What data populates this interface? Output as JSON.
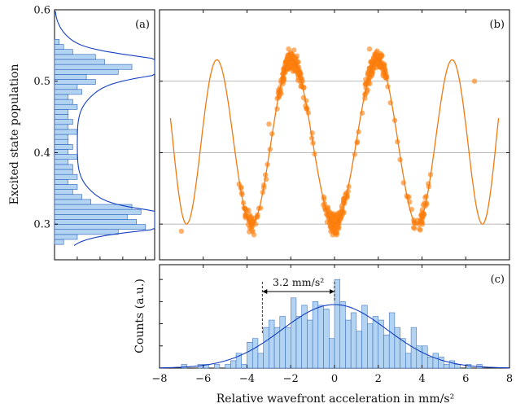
{
  "figure": {
    "ylabel_left": "Excited state population",
    "ylabel_bottom": "Counts (a.u.)",
    "xlabel": "Relative wavefront acceleration in mm/s²"
  },
  "colors": {
    "scatter": "#ff7f0e",
    "fit_orange": "#f07a10",
    "hist_fill": "#b3d3f3",
    "hist_edge": "#2a62b8",
    "fit_blue": "#1540c0",
    "grid": "#b0b0b0"
  },
  "chart_data": [
    {
      "panel": "a",
      "type": "bar",
      "orientation": "horizontal",
      "label": "(a)",
      "ylim": [
        0.25,
        0.6
      ],
      "yticks": [
        "0.3",
        "0.4",
        "0.5",
        "0.6"
      ],
      "bins_y": [
        0.275,
        0.282,
        0.289,
        0.296,
        0.303,
        0.31,
        0.317,
        0.324,
        0.331,
        0.338,
        0.345,
        0.352,
        0.359,
        0.366,
        0.373,
        0.38,
        0.387,
        0.394,
        0.401,
        0.408,
        0.415,
        0.422,
        0.429,
        0.436,
        0.443,
        0.45,
        0.457,
        0.464,
        0.471,
        0.478,
        0.485,
        0.492,
        0.499,
        0.506,
        0.513,
        0.52,
        0.527,
        0.534,
        0.541,
        0.548,
        0.555
      ],
      "counts": [
        2,
        5,
        14,
        20,
        18,
        16,
        19,
        17,
        8,
        6,
        4,
        5,
        3,
        5,
        4,
        4,
        3,
        5,
        3,
        4,
        3,
        3,
        5,
        3,
        4,
        3,
        3,
        5,
        4,
        3,
        6,
        5,
        9,
        7,
        14,
        17,
        11,
        9,
        4,
        2,
        1
      ],
      "fit": "double-peaked density, peaks near 0.305 and 0.52"
    },
    {
      "panel": "b",
      "type": "scatter",
      "label": "(b)",
      "xlim": [
        -8,
        8
      ],
      "ylim": [
        0.25,
        0.6
      ],
      "gridlines_y": [
        0.3,
        0.4,
        0.5
      ],
      "fit_curve": {
        "type": "line",
        "x_range": [
          -7.5,
          7.5
        ],
        "formula": "y = 0.415 - 0.115*cos(pi*x/2 * (1 + 0.004*x^2))"
      },
      "points_sample": [
        {
          "x": -7.0,
          "y": 0.29
        },
        {
          "x": -3.9,
          "y": 0.31
        },
        {
          "x": -2.0,
          "y": 0.52
        },
        {
          "x": -2.1,
          "y": 0.545
        },
        {
          "x": 0.0,
          "y": 0.3
        },
        {
          "x": 0.1,
          "y": 0.285
        },
        {
          "x": 1.9,
          "y": 0.53
        },
        {
          "x": 1.6,
          "y": 0.545
        },
        {
          "x": 4.0,
          "y": 0.31
        },
        {
          "x": 6.4,
          "y": 0.5
        },
        {
          "x": -3.0,
          "y": 0.44
        },
        {
          "x": 3.0,
          "y": 0.39
        }
      ],
      "points_distribution": "dense clusters along the fitted cosine between x = -4.5 and 4.5"
    },
    {
      "panel": "c",
      "type": "bar",
      "label": "(c)",
      "xlim": [
        -8,
        8
      ],
      "xticks": [
        "−8",
        "−6",
        "−4",
        "−2",
        "0",
        "2",
        "4",
        "6",
        "8"
      ],
      "bin_width": 0.25,
      "bins_x": [
        -6.875,
        -6.625,
        -6.375,
        -6.125,
        -5.875,
        -5.625,
        -5.375,
        -5.125,
        -4.875,
        -4.625,
        -4.375,
        -4.125,
        -3.875,
        -3.625,
        -3.375,
        -3.125,
        -2.875,
        -2.625,
        -2.375,
        -2.125,
        -1.875,
        -1.625,
        -1.375,
        -1.125,
        -0.875,
        -0.625,
        -0.375,
        -0.125,
        0.125,
        0.375,
        0.625,
        0.875,
        1.125,
        1.375,
        1.625,
        1.875,
        2.125,
        2.375,
        2.625,
        2.875,
        3.125,
        3.375,
        3.625,
        3.875,
        4.125,
        4.375,
        4.625,
        4.875,
        5.125,
        5.375,
        5.625,
        5.875,
        6.125,
        6.375,
        6.625
      ],
      "counts": [
        0.5,
        0.0,
        0.0,
        0.5,
        0.5,
        0.0,
        0.5,
        0.0,
        0.5,
        1.0,
        2.0,
        0.5,
        3.5,
        4.0,
        2.0,
        5.5,
        6.5,
        5.5,
        7.0,
        5.5,
        9.5,
        7.0,
        8.5,
        6.5,
        9.0,
        8.5,
        8.0,
        4.0,
        12.0,
        9.0,
        6.5,
        7.5,
        5.0,
        8.5,
        6.0,
        7.0,
        6.5,
        4.5,
        7.5,
        5.5,
        4.0,
        2.0,
        5.5,
        3.0,
        3.0,
        1.5,
        2.0,
        1.5,
        0.5,
        1.0,
        0.5,
        0.0,
        0.5,
        0.0,
        0.5
      ],
      "fit": {
        "type": "gaussian",
        "mean": 0.0,
        "sigma": 2.4,
        "peak": 8.6
      },
      "annotation": {
        "text": "3.2 mm/s²",
        "from_x": -3.3,
        "to_x": 0.0
      }
    }
  ]
}
